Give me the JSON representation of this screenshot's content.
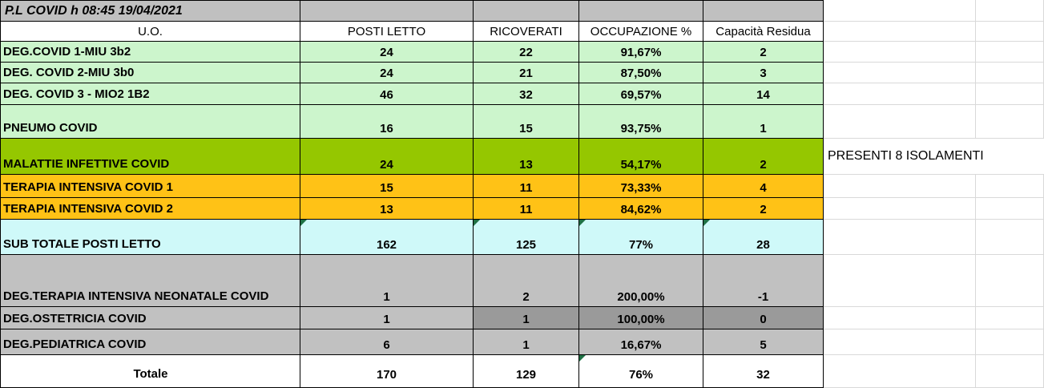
{
  "sheet": {
    "title": "P.L COVID h 08:45 19/04/2021",
    "columns": [
      "U.O.",
      "POSTI LETTO",
      "RICOVERATI",
      "OCCUPAZIONE %",
      "Capacità Residua"
    ],
    "rows": [
      {
        "label": "DEG.COVID 1-MIU 3b2",
        "values": [
          "24",
          "22",
          "91,67%",
          "2"
        ]
      },
      {
        "label": "DEG. COVID 2-MIU 3b0",
        "values": [
          "24",
          "21",
          "87,50%",
          "3"
        ]
      },
      {
        "label": "DEG. COVID 3 - MIO2 1B2",
        "values": [
          "46",
          "32",
          "69,57%",
          "14"
        ]
      },
      {
        "label": "PNEUMO COVID",
        "values": [
          "16",
          "15",
          "93,75%",
          "1"
        ]
      },
      {
        "label": "MALATTIE INFETTIVE COVID",
        "values": [
          "24",
          "13",
          "54,17%",
          "2"
        ],
        "note": "PRESENTI 8 ISOLAMENTI"
      },
      {
        "label": "TERAPIA INTENSIVA COVID 1",
        "values": [
          "15",
          "11",
          "73,33%",
          "4"
        ]
      },
      {
        "label": "TERAPIA INTENSIVA COVID 2",
        "values": [
          "13",
          "11",
          "84,62%",
          "2"
        ]
      },
      {
        "label": "SUB TOTALE POSTI LETTO",
        "values": [
          "162",
          "125",
          "77%",
          "28"
        ]
      },
      {
        "label": "DEG.TERAPIA INTENSIVA NEONATALE COVID",
        "values": [
          "1",
          "2",
          "200,00%",
          "-1"
        ]
      },
      {
        "label": "DEG.OSTETRICIA COVID",
        "values": [
          "1",
          "1",
          "100,00%",
          "0"
        ]
      },
      {
        "label": "DEG.PEDIATRICA COVID",
        "values": [
          "6",
          "1",
          "16,67%",
          "5"
        ]
      },
      {
        "label": "Totale",
        "values": [
          "170",
          "129",
          "76%",
          "32"
        ]
      }
    ]
  },
  "colors": {
    "title-gray": "#C0C0C0",
    "light-green": "#CCF5CC",
    "bright-green": "#95C700",
    "amber": "#FFC216",
    "cyan": "#CFF9F9",
    "gray": "#C1C1C1",
    "dark-gray": "#9A9A9A",
    "error-green": "#1F7145",
    "gridline": "#D9D9D9",
    "border": "#000000"
  }
}
